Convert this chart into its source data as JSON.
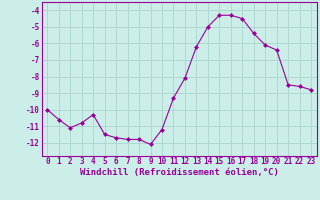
{
  "x": [
    0,
    1,
    2,
    3,
    4,
    5,
    6,
    7,
    8,
    9,
    10,
    11,
    12,
    13,
    14,
    15,
    16,
    17,
    18,
    19,
    20,
    21,
    22,
    23
  ],
  "y": [
    -10.0,
    -10.6,
    -11.1,
    -10.8,
    -10.3,
    -11.5,
    -11.7,
    -11.8,
    -11.8,
    -12.1,
    -11.2,
    -9.3,
    -8.1,
    -6.2,
    -5.0,
    -4.3,
    -4.3,
    -4.5,
    -5.4,
    -6.1,
    -6.4,
    -8.5,
    -8.6,
    -8.8
  ],
  "line_color": "#990099",
  "marker": "D",
  "markersize": 2.0,
  "linewidth": 0.8,
  "background_color": "#cceee8",
  "grid_color": "#aad4ce",
  "xlabel": "Windchill (Refroidissement éolien,°C)",
  "xlabel_fontsize": 6.5,
  "tick_fontsize": 5.5,
  "ylim": [
    -12.8,
    -3.5
  ],
  "xlim": [
    -0.5,
    23.5
  ],
  "yticks": [
    -12,
    -11,
    -10,
    -9,
    -8,
    -7,
    -6,
    -5,
    -4
  ],
  "xticks": [
    0,
    1,
    2,
    3,
    4,
    5,
    6,
    7,
    8,
    9,
    10,
    11,
    12,
    13,
    14,
    15,
    16,
    17,
    18,
    19,
    20,
    21,
    22,
    23
  ]
}
